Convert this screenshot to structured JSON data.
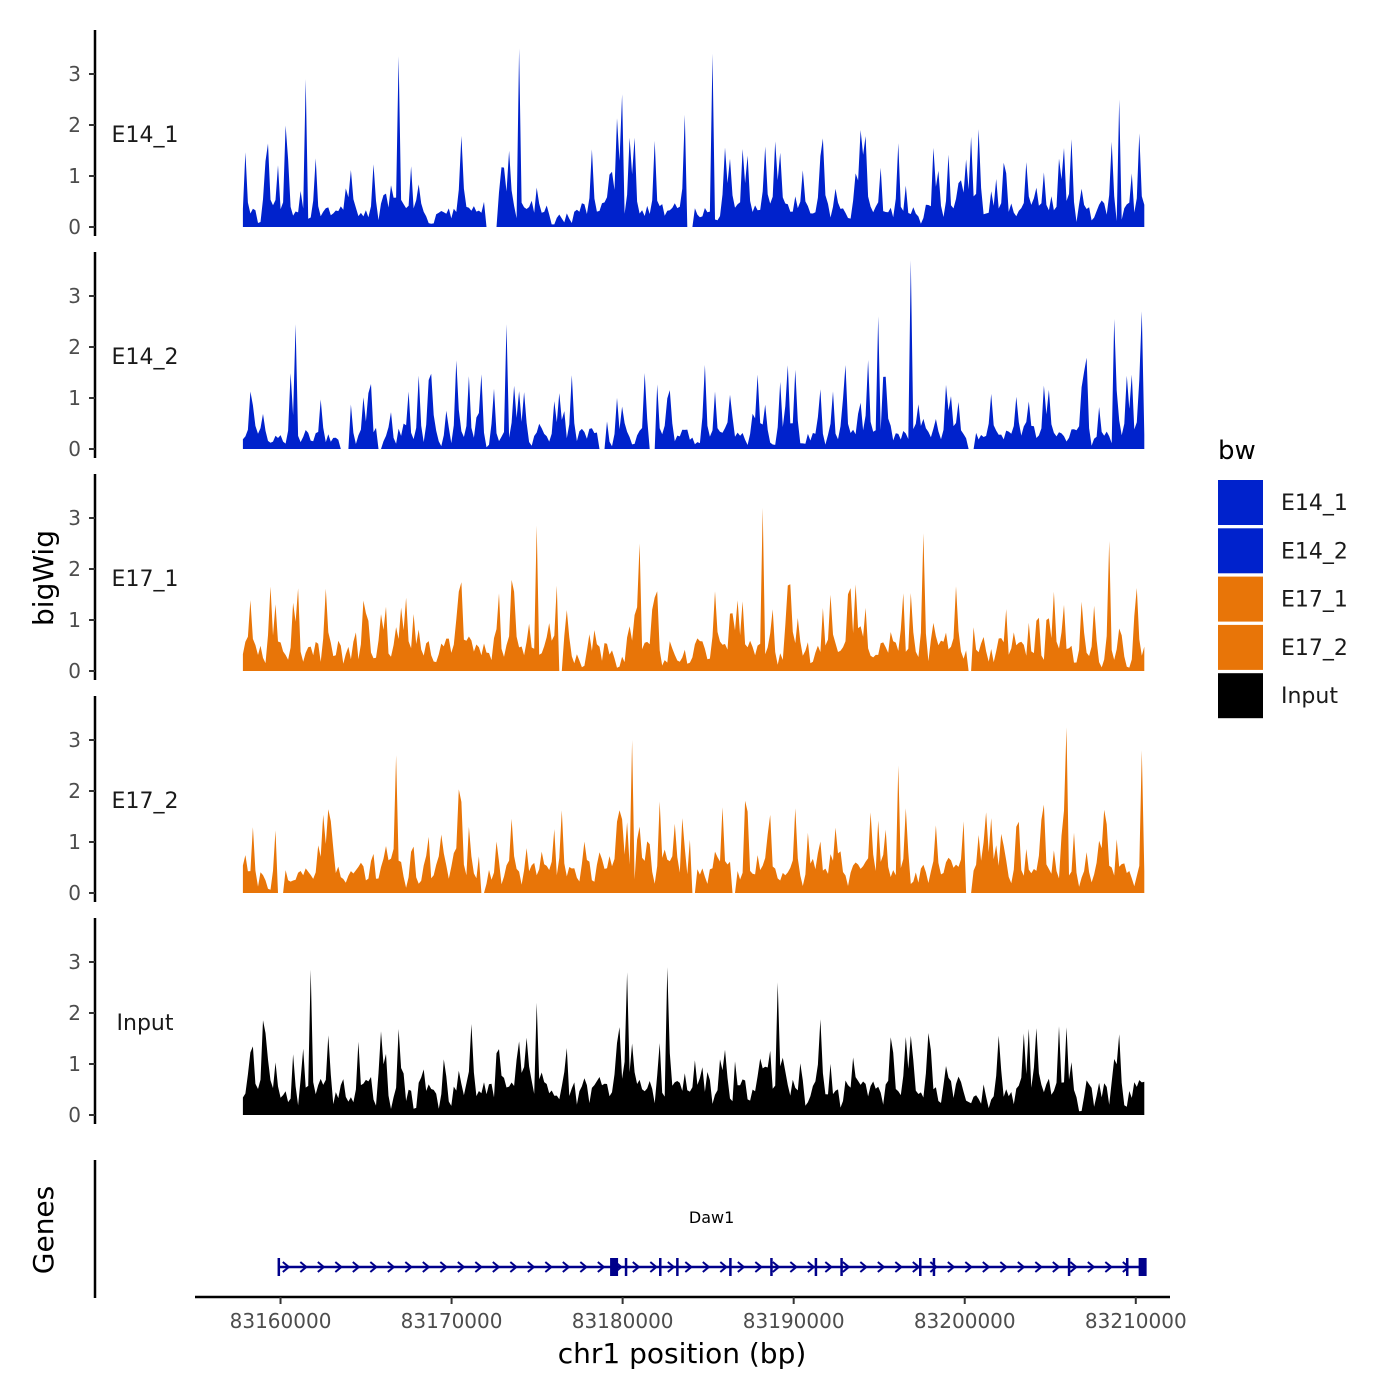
{
  "chart_data": {
    "type": "area",
    "y_axis_title": "bigWig",
    "x_axis_title": "chr1 position (bp)",
    "xlim": [
      83155000,
      83212000
    ],
    "x_data_range": [
      83157800,
      83210500
    ],
    "x_ticks": [
      83160000,
      83170000,
      83180000,
      83190000,
      83200000,
      83210000
    ],
    "x_tick_labels": [
      "83160000",
      "83170000",
      "83180000",
      "83190000",
      "83200000",
      "83210000"
    ],
    "ylim": [
      0,
      3.9
    ],
    "y_ticks": [
      0,
      1,
      2,
      3
    ],
    "y_tick_labels": [
      "0",
      "1",
      "2",
      "3"
    ],
    "legend": {
      "title": "bw",
      "entries": [
        {
          "label": "E14_1",
          "color": "#0022CC"
        },
        {
          "label": "E14_2",
          "color": "#0022CC"
        },
        {
          "label": "E17_1",
          "color": "#E87508"
        },
        {
          "label": "E17_2",
          "color": "#E87508"
        },
        {
          "label": "Input",
          "color": "#000000"
        }
      ]
    },
    "tracks": [
      {
        "name": "E14_1",
        "color": "#0022CC",
        "seed": 11,
        "base": 0.35,
        "spike_prob": 0.3,
        "spike_max": 2.2,
        "peaks": [
          [
            83161400,
            2.9
          ],
          [
            83166900,
            3.35
          ],
          [
            83174000,
            3.5
          ],
          [
            83185200,
            3.4
          ],
          [
            83180000,
            2.6
          ],
          [
            83209000,
            2.5
          ]
        ],
        "gaps": [
          [
            83171900,
            83172700
          ],
          [
            83183700,
            83184200
          ]
        ]
      },
      {
        "name": "E14_2",
        "color": "#0022CC",
        "seed": 23,
        "base": 0.3,
        "spike_prob": 0.3,
        "spike_max": 2.0,
        "peaks": [
          [
            83160900,
            2.45
          ],
          [
            83196800,
            3.7
          ],
          [
            83195000,
            2.6
          ],
          [
            83210400,
            2.7
          ],
          [
            83208800,
            2.55
          ],
          [
            83173200,
            2.45
          ]
        ],
        "gaps": [
          [
            83163500,
            83164000
          ],
          [
            83165600,
            83166000
          ],
          [
            83178500,
            83179000
          ],
          [
            83181500,
            83182000
          ],
          [
            83200200,
            83200600
          ]
        ]
      },
      {
        "name": "E17_1",
        "color": "#E87508",
        "seed": 37,
        "base": 0.45,
        "spike_prob": 0.3,
        "spike_max": 1.8,
        "peaks": [
          [
            83175000,
            2.85
          ],
          [
            83188200,
            3.2
          ],
          [
            83181000,
            2.5
          ],
          [
            83197600,
            2.7
          ],
          [
            83208500,
            2.55
          ]
        ],
        "gaps": [
          [
            83176200,
            83176500
          ],
          [
            83200100,
            83200400
          ]
        ]
      },
      {
        "name": "E17_2",
        "color": "#E87508",
        "seed": 53,
        "base": 0.45,
        "spike_prob": 0.3,
        "spike_max": 1.9,
        "peaks": [
          [
            83166700,
            2.7
          ],
          [
            83180600,
            3.0
          ],
          [
            83205900,
            3.25
          ],
          [
            83210400,
            2.8
          ],
          [
            83196100,
            2.5
          ]
        ],
        "gaps": [
          [
            83159800,
            83160200
          ],
          [
            83171600,
            83172000
          ],
          [
            83184000,
            83184300
          ],
          [
            83186300,
            83186600
          ],
          [
            83200000,
            83200400
          ]
        ]
      },
      {
        "name": "Input",
        "color": "#000000",
        "seed": 71,
        "base": 0.55,
        "spike_prob": 0.3,
        "spike_max": 1.8,
        "peaks": [
          [
            83161800,
            2.85
          ],
          [
            83180300,
            2.8
          ],
          [
            83182600,
            2.9
          ],
          [
            83189000,
            2.6
          ],
          [
            83175000,
            2.2
          ]
        ],
        "gaps": []
      }
    ],
    "genes_axis_title": "Genes",
    "gene": {
      "name": "Daw1",
      "strand": "+",
      "start": 83159900,
      "end": 83210500,
      "color": "#00008B",
      "exons": [
        83159900,
        83179500,
        83180200,
        83182200,
        83183200,
        83186300,
        83188700,
        83191300,
        83192800,
        83197400,
        83198200,
        83206100,
        83209500,
        83210400
      ]
    }
  }
}
